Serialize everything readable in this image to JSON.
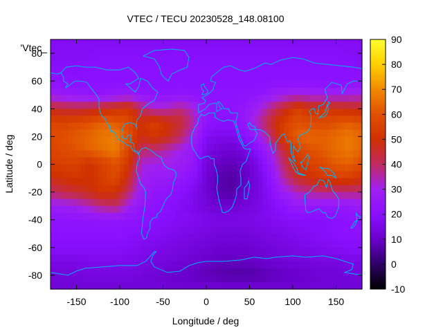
{
  "chart_data": {
    "type": "heatmap",
    "title": "VTEC / TECU 20230528_148.08100",
    "xlabel": "Longitude / deg",
    "ylabel": "Latitude / deg",
    "key_label": "'Vtec_",
    "xlim": [
      -180,
      180
    ],
    "ylim": [
      -90,
      90
    ],
    "xticks": [
      -150,
      -100,
      -50,
      0,
      50,
      100,
      150
    ],
    "yticks": [
      -80,
      -60,
      -40,
      -20,
      0,
      20,
      40,
      60,
      80
    ],
    "color_range": [
      -10,
      90
    ],
    "colorbar_ticks": [
      -10,
      0,
      10,
      20,
      30,
      40,
      50,
      60,
      70,
      80,
      90
    ],
    "palette_stops": [
      "#000000",
      "#2d0066",
      "#6a00cc",
      "#8a10ff",
      "#a020f0",
      "#c02a60",
      "#d03000",
      "#e05000",
      "#f08a00",
      "#ffd000",
      "#ffff30"
    ],
    "coastline_color": "#00b4ff",
    "lons": [
      -180,
      -165,
      -150,
      -135,
      -120,
      -105,
      -90,
      -75,
      -60,
      -45,
      -30,
      -15,
      0,
      15,
      30,
      45,
      60,
      75,
      90,
      105,
      120,
      135,
      150,
      165,
      180
    ],
    "lats": [
      90,
      80,
      70,
      60,
      50,
      40,
      30,
      20,
      10,
      0,
      -10,
      -20,
      -30,
      -40,
      -50,
      -60,
      -70,
      -80,
      -90
    ],
    "values": [
      [
        18,
        18,
        18,
        18,
        18,
        18,
        18,
        18,
        18,
        18,
        18,
        18,
        18,
        18,
        18,
        18,
        18,
        18,
        18,
        18,
        18,
        18,
        18,
        18,
        18
      ],
      [
        18,
        18,
        18,
        18,
        19,
        19,
        19,
        19,
        19,
        19,
        19,
        19,
        19,
        19,
        19,
        19,
        19,
        19,
        19,
        19,
        19,
        19,
        19,
        18,
        18
      ],
      [
        19,
        19,
        19,
        20,
        20,
        20,
        20,
        20,
        20,
        20,
        20,
        20,
        20,
        20,
        20,
        20,
        20,
        20,
        20,
        20,
        20,
        20,
        20,
        20,
        19
      ],
      [
        22,
        21,
        20,
        20,
        20,
        20,
        20,
        20,
        20,
        20,
        20,
        20,
        20,
        20,
        20,
        20,
        20,
        20,
        20,
        20,
        20,
        20,
        20,
        21,
        22
      ],
      [
        28,
        26,
        25,
        24,
        23,
        25,
        27,
        24,
        22,
        22,
        23,
        22,
        21,
        21,
        21,
        22,
        23,
        26,
        29,
        31,
        30,
        29,
        29,
        30,
        32
      ],
      [
        45,
        44,
        43,
        44,
        47,
        50,
        52,
        40,
        33,
        34,
        38,
        32,
        24,
        22,
        22,
        24,
        30,
        38,
        46,
        55,
        50,
        51,
        50,
        48,
        47
      ],
      [
        57,
        56,
        58,
        60,
        63,
        62,
        58,
        50,
        55,
        50,
        45,
        35,
        22,
        20,
        20,
        25,
        35,
        45,
        55,
        60,
        58,
        58,
        60,
        62,
        60
      ],
      [
        58,
        60,
        62,
        64,
        67,
        68,
        60,
        48,
        52,
        48,
        40,
        30,
        18,
        16,
        16,
        20,
        28,
        40,
        55,
        63,
        64,
        63,
        65,
        67,
        64
      ],
      [
        56,
        58,
        60,
        63,
        65,
        68,
        56,
        40,
        38,
        34,
        30,
        25,
        15,
        12,
        11,
        14,
        20,
        30,
        44,
        55,
        60,
        62,
        65,
        67,
        63
      ],
      [
        53,
        55,
        55,
        50,
        55,
        60,
        52,
        32,
        30,
        30,
        28,
        24,
        13,
        9,
        8,
        10,
        16,
        26,
        40,
        52,
        55,
        58,
        62,
        63,
        58
      ],
      [
        48,
        50,
        52,
        50,
        54,
        58,
        46,
        30,
        26,
        26,
        24,
        20,
        12,
        7,
        6,
        9,
        14,
        22,
        36,
        45,
        50,
        53,
        54,
        54,
        50
      ],
      [
        40,
        43,
        45,
        48,
        52,
        50,
        40,
        28,
        24,
        22,
        20,
        17,
        12,
        7,
        6,
        10,
        14,
        20,
        28,
        34,
        36,
        38,
        38,
        38,
        38
      ],
      [
        28,
        28,
        30,
        34,
        38,
        40,
        30,
        24,
        21,
        20,
        18,
        16,
        13,
        11,
        11,
        13,
        15,
        18,
        22,
        25,
        25,
        24,
        24,
        25,
        27
      ],
      [
        22,
        22,
        22,
        22,
        23,
        23,
        22,
        21,
        20,
        19,
        18,
        17,
        16,
        15,
        15,
        15,
        16,
        17,
        18,
        19,
        19,
        19,
        20,
        21,
        22
      ],
      [
        21,
        21,
        21,
        21,
        21,
        21,
        20,
        19,
        18,
        17,
        16,
        15,
        14,
        13,
        13,
        13,
        14,
        15,
        16,
        17,
        18,
        19,
        20,
        21,
        21
      ],
      [
        19,
        19,
        19,
        19,
        19,
        19,
        18,
        17,
        16,
        15,
        14,
        13,
        12,
        11,
        11,
        11,
        12,
        13,
        14,
        15,
        16,
        17,
        18,
        19,
        19
      ],
      [
        15,
        15,
        15,
        16,
        16,
        16,
        16,
        15,
        14,
        13,
        12,
        11,
        10,
        9,
        9,
        9,
        10,
        11,
        12,
        13,
        13,
        14,
        14,
        15,
        15
      ],
      [
        13,
        13,
        13,
        14,
        14,
        14,
        14,
        13,
        12,
        11,
        10,
        9,
        8,
        7,
        6,
        6,
        7,
        8,
        9,
        10,
        11,
        12,
        12,
        13,
        13
      ],
      [
        12,
        12,
        12,
        12,
        12,
        12,
        12,
        12,
        12,
        12,
        12,
        12,
        12,
        12,
        12,
        12,
        12,
        12,
        12,
        12,
        12,
        12,
        12,
        12,
        12
      ]
    ]
  }
}
